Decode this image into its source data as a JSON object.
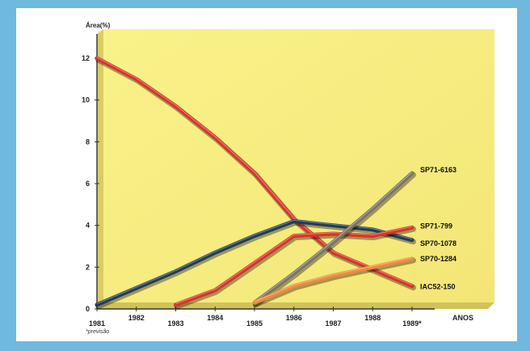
{
  "chart_data": {
    "type": "line",
    "ylabel": "Área(%)",
    "xlabel": "ANOS",
    "note": "*previsão",
    "ylim": [
      0,
      12
    ],
    "yticks": [
      "0",
      "2",
      "4",
      "6",
      "8",
      "10",
      "12"
    ],
    "x": [
      "1981",
      "1982",
      "1983",
      "1984",
      "1985",
      "1986",
      "1987",
      "1988",
      "1989*"
    ],
    "grid": false,
    "legend": "labels at line ends (right)",
    "series": [
      {
        "name": "IAC52-150",
        "color": "#d9342b",
        "x": [
          "1981",
          "1982",
          "1983",
          "1984",
          "1985",
          "1986",
          "1987",
          "1988",
          "1989*"
        ],
        "values": [
          12.0,
          11.0,
          9.7,
          8.2,
          6.5,
          4.3,
          2.7,
          1.9,
          1.1
        ]
      },
      {
        "name": "SP70-1078",
        "color": "#1f3d5c",
        "x": [
          "1981",
          "1982",
          "1983",
          "1984",
          "1985",
          "1986",
          "1987",
          "1988",
          "1989*"
        ],
        "values": [
          0.2,
          1.0,
          1.8,
          2.7,
          3.5,
          4.2,
          4.0,
          3.8,
          3.3
        ]
      },
      {
        "name": "SP71-799",
        "color": "#d9342b",
        "x": [
          "1983",
          "1984",
          "1985",
          "1986",
          "1987",
          "1988",
          "1989*"
        ],
        "values": [
          0.2,
          0.9,
          2.2,
          3.5,
          3.6,
          3.5,
          3.9
        ]
      },
      {
        "name": "SP71-6163",
        "color": "#7a736e",
        "x": [
          "1985",
          "1986",
          "1987",
          "1988",
          "1989*"
        ],
        "values": [
          0.3,
          1.7,
          3.2,
          4.8,
          6.5
        ]
      },
      {
        "name": "SP70-1284",
        "color": "#ef8a3a",
        "x": [
          "1985",
          "1986",
          "1987",
          "1988",
          "1989*"
        ],
        "values": [
          0.3,
          1.1,
          1.6,
          2.0,
          2.4
        ]
      }
    ]
  }
}
